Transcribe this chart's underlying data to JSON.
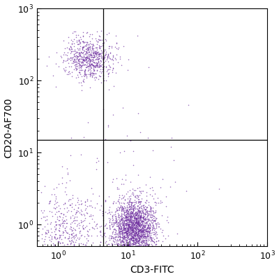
{
  "title": "",
  "xlabel": "CD3-FITC",
  "ylabel": "CD20-AF700",
  "xlim": [
    0.5,
    1000
  ],
  "ylim": [
    0.5,
    1000
  ],
  "gate_x": 4.5,
  "gate_y": 15.0,
  "dot_color": "#7030A0",
  "dot_alpha": 0.7,
  "dot_size": 1.2,
  "background_color": "#ffffff",
  "populations": {
    "cd20pos_cd3neg": {
      "n": 700,
      "x_log_mean": 0.45,
      "x_log_std": 0.18,
      "y_log_mean": 2.3,
      "y_log_std": 0.15
    },
    "cd20neg_cd3pos": {
      "n": 2200,
      "x_log_mean": 1.08,
      "x_log_std": 0.16,
      "y_log_mean": -0.05,
      "y_log_std": 0.22
    },
    "double_neg": {
      "n": 450,
      "x_log_mean": 0.15,
      "x_log_std": 0.22,
      "y_log_mean": -0.08,
      "y_log_std": 0.28
    },
    "scattered": {
      "n": 100,
      "x_log_mean": 0.7,
      "x_log_std": 0.55,
      "y_log_mean": 0.9,
      "y_log_std": 0.7
    }
  }
}
